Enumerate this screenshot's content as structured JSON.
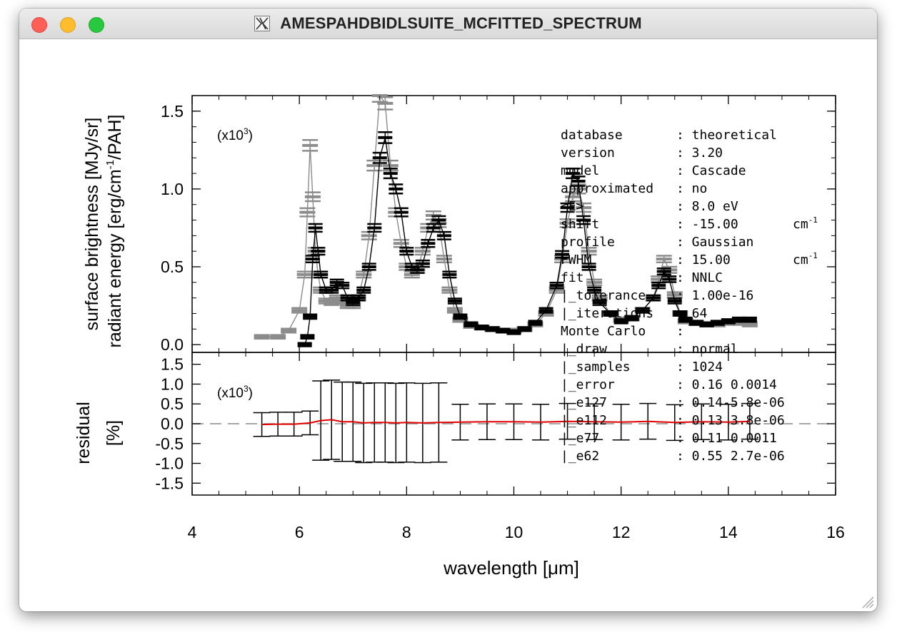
{
  "window": {
    "title": "AMESPAHDBIDLSUITE_MCFITTED_SPECTRUM",
    "icons": {
      "app": "x11-icon",
      "close": "close-icon",
      "minimize": "minimize-icon",
      "zoom": "zoom-icon",
      "resize": "resize-grip-icon"
    }
  },
  "colors": {
    "observation": "#8c8c8c",
    "fit": "#000000",
    "residual": "#e00000",
    "zero_line": "#8c8c8c"
  },
  "chart_data": [
    {
      "type": "line",
      "panel": "spectrum",
      "ylabel_1": "surface brightness [MJy/sr]",
      "ylabel_2": "radiant energy [erg/cm",
      "ylabel_2_sup": "-1",
      "ylabel_2_tail": "/PAH]",
      "multiplier": "(x10",
      "multiplier_exp": "3",
      "multiplier_close": ")",
      "xlim": [
        4,
        16
      ],
      "ylim": [
        -0.05,
        1.6
      ],
      "yticks": [
        "1.5",
        "1.0",
        "0.5",
        "0.0"
      ],
      "ytick_values": [
        1.5,
        1.0,
        0.5,
        0.0
      ],
      "series": [
        {
          "x": [
            5.3,
            5.6,
            5.8,
            6.0,
            6.1,
            6.15,
            6.2,
            6.25,
            6.3,
            6.35,
            6.4,
            6.5,
            6.6,
            6.7,
            6.8,
            6.9,
            7.0,
            7.1,
            7.2,
            7.3,
            7.4,
            7.5,
            7.6,
            7.7,
            7.8,
            7.9,
            8.0,
            8.1,
            8.2,
            8.3,
            8.4,
            8.5,
            8.6,
            8.7,
            8.8,
            8.9,
            9.0,
            9.2,
            9.4,
            9.6,
            9.8,
            10.0,
            10.2,
            10.4,
            10.6,
            10.8,
            10.9,
            11.0,
            11.1,
            11.2,
            11.3,
            11.4,
            11.5,
            11.6,
            11.8,
            12.0,
            12.2,
            12.4,
            12.6,
            12.7,
            12.8,
            12.9,
            13.0,
            13.1,
            13.2,
            13.4,
            13.6,
            13.8,
            14.0,
            14.2,
            14.4
          ],
          "y": [
            0.05,
            0.05,
            0.09,
            0.22,
            0.45,
            0.85,
            1.28,
            0.95,
            0.6,
            0.45,
            0.35,
            0.28,
            0.27,
            0.3,
            0.28,
            0.25,
            0.25,
            0.3,
            0.45,
            0.7,
            1.15,
            1.6,
            1.55,
            1.15,
            0.85,
            0.65,
            0.5,
            0.45,
            0.48,
            0.6,
            0.75,
            0.83,
            0.78,
            0.55,
            0.35,
            0.22,
            0.16,
            0.12,
            0.11,
            0.1,
            0.09,
            0.09,
            0.1,
            0.13,
            0.2,
            0.35,
            0.55,
            0.78,
            0.95,
            1.0,
            0.88,
            0.6,
            0.4,
            0.3,
            0.2,
            0.16,
            0.17,
            0.22,
            0.3,
            0.42,
            0.55,
            0.48,
            0.32,
            0.2,
            0.15,
            0.14,
            0.13,
            0.13,
            0.14,
            0.14,
            0.13
          ]
        },
        {
          "x": [
            6.1,
            6.15,
            6.2,
            6.25,
            6.3,
            6.35,
            6.4,
            6.5,
            6.6,
            6.7,
            6.8,
            6.9,
            7.0,
            7.1,
            7.2,
            7.3,
            7.4,
            7.5,
            7.6,
            7.7,
            7.8,
            7.9,
            8.0,
            8.1,
            8.2,
            8.3,
            8.4,
            8.5,
            8.6,
            8.7,
            8.8,
            8.9,
            9.0,
            9.2,
            9.4,
            9.6,
            9.8,
            10.0,
            10.2,
            10.4,
            10.6,
            10.8,
            10.9,
            11.0,
            11.1,
            11.2,
            11.3,
            11.4,
            11.5,
            11.6,
            11.8,
            12.0,
            12.2,
            12.4,
            12.6,
            12.7,
            12.8,
            12.9,
            13.0,
            13.1,
            13.2,
            13.4,
            13.6,
            13.8,
            14.0,
            14.2,
            14.4
          ],
          "y": [
            0.0,
            0.05,
            0.18,
            0.55,
            0.75,
            0.6,
            0.45,
            0.35,
            0.35,
            0.4,
            0.38,
            0.3,
            0.27,
            0.3,
            0.35,
            0.5,
            0.75,
            1.2,
            1.33,
            1.1,
            1.0,
            0.85,
            0.6,
            0.5,
            0.48,
            0.52,
            0.65,
            0.75,
            0.8,
            0.7,
            0.45,
            0.28,
            0.18,
            0.13,
            0.11,
            0.1,
            0.09,
            0.08,
            0.1,
            0.14,
            0.22,
            0.38,
            0.58,
            0.88,
            1.1,
            1.05,
            0.8,
            0.5,
            0.35,
            0.27,
            0.2,
            0.15,
            0.17,
            0.22,
            0.3,
            0.38,
            0.47,
            0.42,
            0.28,
            0.2,
            0.16,
            0.14,
            0.13,
            0.14,
            0.15,
            0.16,
            0.16
          ]
        }
      ]
    },
    {
      "type": "line",
      "panel": "residual",
      "ylabel_1": "residual",
      "ylabel_2": "[%]",
      "multiplier": "(x10",
      "multiplier_exp": "3",
      "multiplier_close": ")",
      "xlabel": "wavelength [μm]",
      "xlim": [
        4,
        16
      ],
      "ylim": [
        -1.8,
        1.8
      ],
      "xticks": [
        "4",
        "6",
        "8",
        "10",
        "12",
        "14",
        "16"
      ],
      "xtick_values": [
        4,
        6,
        8,
        10,
        12,
        14,
        16
      ],
      "yticks": [
        "1.5",
        "1.0",
        "0.5",
        "0.0",
        "-0.5",
        "-1.0",
        "-1.5"
      ],
      "ytick_values": [
        1.5,
        1.0,
        0.5,
        0.0,
        -0.5,
        -1.0,
        -1.5
      ],
      "zero_line": 0.0,
      "series": [
        {
          "x": [
            5.3,
            5.6,
            5.9,
            6.2,
            6.4,
            6.6,
            6.8,
            7.0,
            7.2,
            7.4,
            7.6,
            7.8,
            8.0,
            8.3,
            8.6,
            9.0,
            9.5,
            10.0,
            10.5,
            11.0,
            11.5,
            12.0,
            12.5,
            13.0,
            13.5,
            14.0,
            14.4
          ],
          "y": [
            -0.02,
            -0.01,
            -0.01,
            0.02,
            0.08,
            0.1,
            0.05,
            0.05,
            0.02,
            0.03,
            0.03,
            0.02,
            0.03,
            0.02,
            0.03,
            0.04,
            0.05,
            0.05,
            0.04,
            0.06,
            0.05,
            0.04,
            0.06,
            0.03,
            0.05,
            0.04,
            0.06
          ]
        }
      ]
    }
  ],
  "legend": {
    "rows": [
      {
        "key": "database",
        "value": "theoretical"
      },
      {
        "key": "version",
        "value": "3.20"
      },
      {
        "key": "model",
        "value": "Cascade"
      },
      {
        "key": "approximated",
        "value": "no"
      },
      {
        "key": "<E>",
        "value": "8.0 eV"
      },
      {
        "key": "shift",
        "value": "-15.00",
        "unit": "cm",
        "unit_sup": "-1"
      },
      {
        "key": "profile",
        "value": "Gaussian"
      },
      {
        "key": "FWHM",
        "value": "15.00",
        "unit": "cm",
        "unit_sup": "-1"
      },
      {
        "key": "fit",
        "value": "NNLC"
      },
      {
        "key": "|_tolerance",
        "value": "1.00e-16"
      },
      {
        "key": "|_iterations",
        "value": "64"
      },
      {
        "key": "Monte Carlo",
        "value": ""
      },
      {
        "key": "|_draw",
        "value": "normal"
      },
      {
        "key": "|_samples",
        "value": "1024"
      },
      {
        "key": "|_error",
        "value": "0.16 0.0014"
      },
      {
        "key": "|_e127",
        "value": "0.14-5.8e-06"
      },
      {
        "key": "|_e112",
        "value": "0.13 3.8e-06"
      },
      {
        "key": "|_e77",
        "value": "0.11 0.0011"
      },
      {
        "key": "|_e62",
        "value": "0.55 2.7e-06"
      }
    ]
  }
}
